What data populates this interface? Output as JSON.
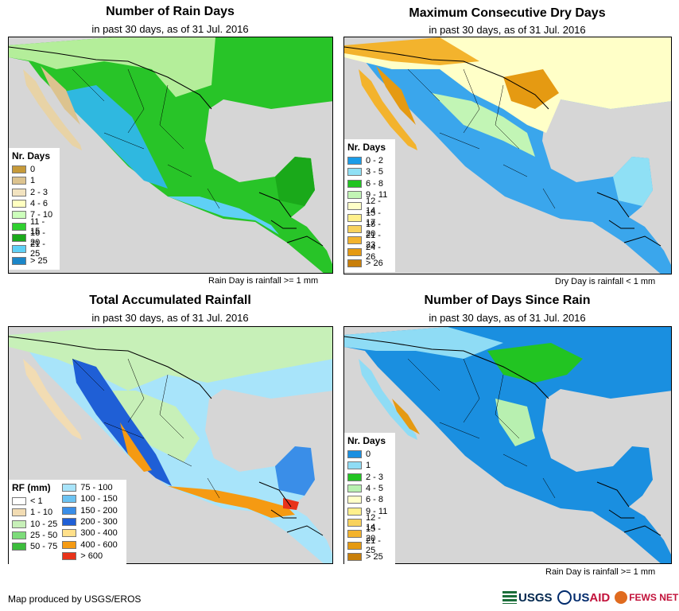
{
  "panels": [
    {
      "id": "rain_days",
      "title": "Number of Rain Days",
      "subtitle": "in past 30 days, as of 31 Jul. 2016",
      "note": "Rain Day is rainfall >= 1 mm",
      "legend": {
        "title": "Nr. Days",
        "items": [
          {
            "label": "0",
            "color": "#c69a3a"
          },
          {
            "label": "1",
            "color": "#dcc38f"
          },
          {
            "label": "2 - 3",
            "color": "#f2e3c0"
          },
          {
            "label": "4 - 6",
            "color": "#ffffc0"
          },
          {
            "label": "7 - 10",
            "color": "#ccffbb"
          },
          {
            "label": "11 - 15",
            "color": "#2fd02f"
          },
          {
            "label": "16 - 20",
            "color": "#1aa91a"
          },
          {
            "label": "21 - 25",
            "color": "#5fd0f5"
          },
          {
            "label": "> 25",
            "color": "#1b86c8"
          }
        ]
      }
    },
    {
      "id": "dry_days",
      "title": "Maximum Consecutive Dry Days",
      "subtitle": "in past 30 days, as of 31 Jul. 2016",
      "note": "Dry Day is rainfall < 1 mm",
      "legend": {
        "title": "Nr. Days",
        "items": [
          {
            "label": "0 - 2",
            "color": "#1a9ce8"
          },
          {
            "label": "3 - 5",
            "color": "#8fe0f5"
          },
          {
            "label": "6 - 8",
            "color": "#22c422"
          },
          {
            "label": "9 - 11",
            "color": "#c2f5b5"
          },
          {
            "label": "12 - 14",
            "color": "#ffffc8"
          },
          {
            "label": "15 - 17",
            "color": "#fff08c"
          },
          {
            "label": "18 - 20",
            "color": "#f8d25c"
          },
          {
            "label": "21 - 23",
            "color": "#f3b32d"
          },
          {
            "label": "24 - 26",
            "color": "#e59a12"
          },
          {
            "label": "> 26",
            "color": "#c87f0a"
          }
        ]
      }
    },
    {
      "id": "total_rain",
      "title": "Total Accumulated Rainfall",
      "subtitle": "in past 30 days, as of 31 Jul. 2016",
      "note": "",
      "legend": {
        "title": "RF (mm)",
        "items": [
          {
            "label": "< 1",
            "color": "#ffffff"
          },
          {
            "label": "1 - 10",
            "color": "#f2dcb3"
          },
          {
            "label": "10 - 25",
            "color": "#c7f0b8"
          },
          {
            "label": "25 - 50",
            "color": "#7ddc7a"
          },
          {
            "label": "50 - 75",
            "color": "#3cbd3c"
          },
          {
            "label": "75 - 100",
            "color": "#a8e4fa"
          },
          {
            "label": "100 - 150",
            "color": "#6cc3f2"
          },
          {
            "label": "150 - 200",
            "color": "#3a8ee8"
          },
          {
            "label": "200 - 300",
            "color": "#1f5fd6"
          },
          {
            "label": "300 - 400",
            "color": "#ffe08a"
          },
          {
            "label": "400 - 600",
            "color": "#f59a12"
          },
          {
            "label": "> 600",
            "color": "#e8331a"
          }
        ]
      }
    },
    {
      "id": "days_since_rain",
      "title": "Number of Days Since Rain",
      "subtitle": "in past 30 days, as of 31 Jul. 2016",
      "note": "Rain Day is rainfall >= 1 mm",
      "legend": {
        "title": "Nr. Days",
        "items": [
          {
            "label": "0",
            "color": "#1a8fe0"
          },
          {
            "label": "1",
            "color": "#8fdcf5"
          },
          {
            "label": "2 - 3",
            "color": "#22c422"
          },
          {
            "label": "4 - 5",
            "color": "#b8f0b0"
          },
          {
            "label": "6 - 8",
            "color": "#ffffc8"
          },
          {
            "label": "9 - 11",
            "color": "#fff08c"
          },
          {
            "label": "12 - 14",
            "color": "#f8d25c"
          },
          {
            "label": "15 - 20",
            "color": "#f3b32d"
          },
          {
            "label": "21 - 25",
            "color": "#e59a12"
          },
          {
            "label": "> 25",
            "color": "#c87f0a"
          }
        ]
      }
    }
  ],
  "colors": {
    "ocean": "#d6d6d6",
    "border": "#000000"
  },
  "footer": {
    "credit": "Map produced by USGS/EROS"
  },
  "logos": {
    "usgs": "USGS",
    "usaid_us": "US",
    "usaid_aid": "AID",
    "fews": "FEWS NET"
  }
}
